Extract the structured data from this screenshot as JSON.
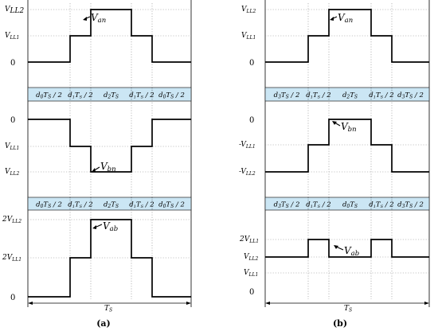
{
  "panel_a": {
    "label": "(a)",
    "upper": {
      "y_labels": [
        "V",
        "LL2",
        "V",
        "LL1",
        "0"
      ],
      "signal": "V",
      "signal_sub": "an"
    },
    "bar1": {
      "segments": [
        [
          "d",
          "0",
          "T",
          "S",
          " / 2"
        ],
        [
          "d",
          "1",
          "T",
          "S",
          " / 2"
        ],
        [
          "d",
          "2",
          "T",
          "S",
          ""
        ],
        [
          "d",
          "1",
          "T",
          "S",
          " / 2"
        ],
        [
          "d",
          "0",
          "T",
          "S",
          " / 2"
        ]
      ]
    },
    "middle": {
      "y_labels": [
        "0",
        "V",
        "LL1",
        "V",
        "LL2"
      ],
      "signal": "V",
      "signal_sub": "bn"
    },
    "bar2": {
      "segments": [
        [
          "d",
          "0",
          "T",
          "S",
          " / 2"
        ],
        [
          "d",
          "1",
          "T",
          "S",
          " / 2"
        ],
        [
          "d",
          "2",
          "T",
          "S",
          ""
        ],
        [
          "d",
          "1",
          "T",
          "S",
          " / 2"
        ],
        [
          "d",
          "0",
          "T",
          "S",
          " / 2"
        ]
      ]
    },
    "lower": {
      "y_labels": [
        "2V",
        "LL2",
        "2V",
        "LL1",
        "0"
      ],
      "signal": "V",
      "signal_sub": "ab"
    },
    "period": {
      "main": "T",
      "sub": "S"
    }
  },
  "panel_b": {
    "label": "(b)",
    "upper": {
      "y_labels": [
        "V",
        "LL2",
        "V",
        "LL1",
        "0"
      ],
      "signal": "V",
      "signal_sub": "an"
    },
    "bar1": {
      "segments": [
        [
          "d",
          "3",
          "T",
          "S",
          " / 2"
        ],
        [
          "d",
          "1",
          "T",
          "S",
          " / 2"
        ],
        [
          "d",
          "2",
          "T",
          "S",
          ""
        ],
        [
          "d",
          "1",
          "T",
          "S",
          " / 2"
        ],
        [
          "d",
          "3",
          "T",
          "S",
          " / 2"
        ]
      ]
    },
    "middle": {
      "y_labels": [
        "0",
        "-V",
        "LL1",
        "-V",
        "LL2"
      ],
      "signal": "V",
      "signal_sub": "bn"
    },
    "bar2": {
      "segments": [
        [
          "d",
          "3",
          "T",
          "S",
          " / 2"
        ],
        [
          "d",
          "1",
          "T",
          "S",
          " / 2"
        ],
        [
          "d",
          "0",
          "T",
          "S",
          ""
        ],
        [
          "d",
          "1",
          "T",
          "S",
          " / 2"
        ],
        [
          "d",
          "3",
          "T",
          "S",
          " / 2"
        ]
      ]
    },
    "lower": {
      "y_labels": [
        "2V",
        "LL1",
        "V",
        "LL2",
        "V",
        "LL1",
        "0"
      ],
      "signal": "V",
      "signal_sub": "ab"
    },
    "period": {
      "main": "T",
      "sub": "S"
    }
  }
}
